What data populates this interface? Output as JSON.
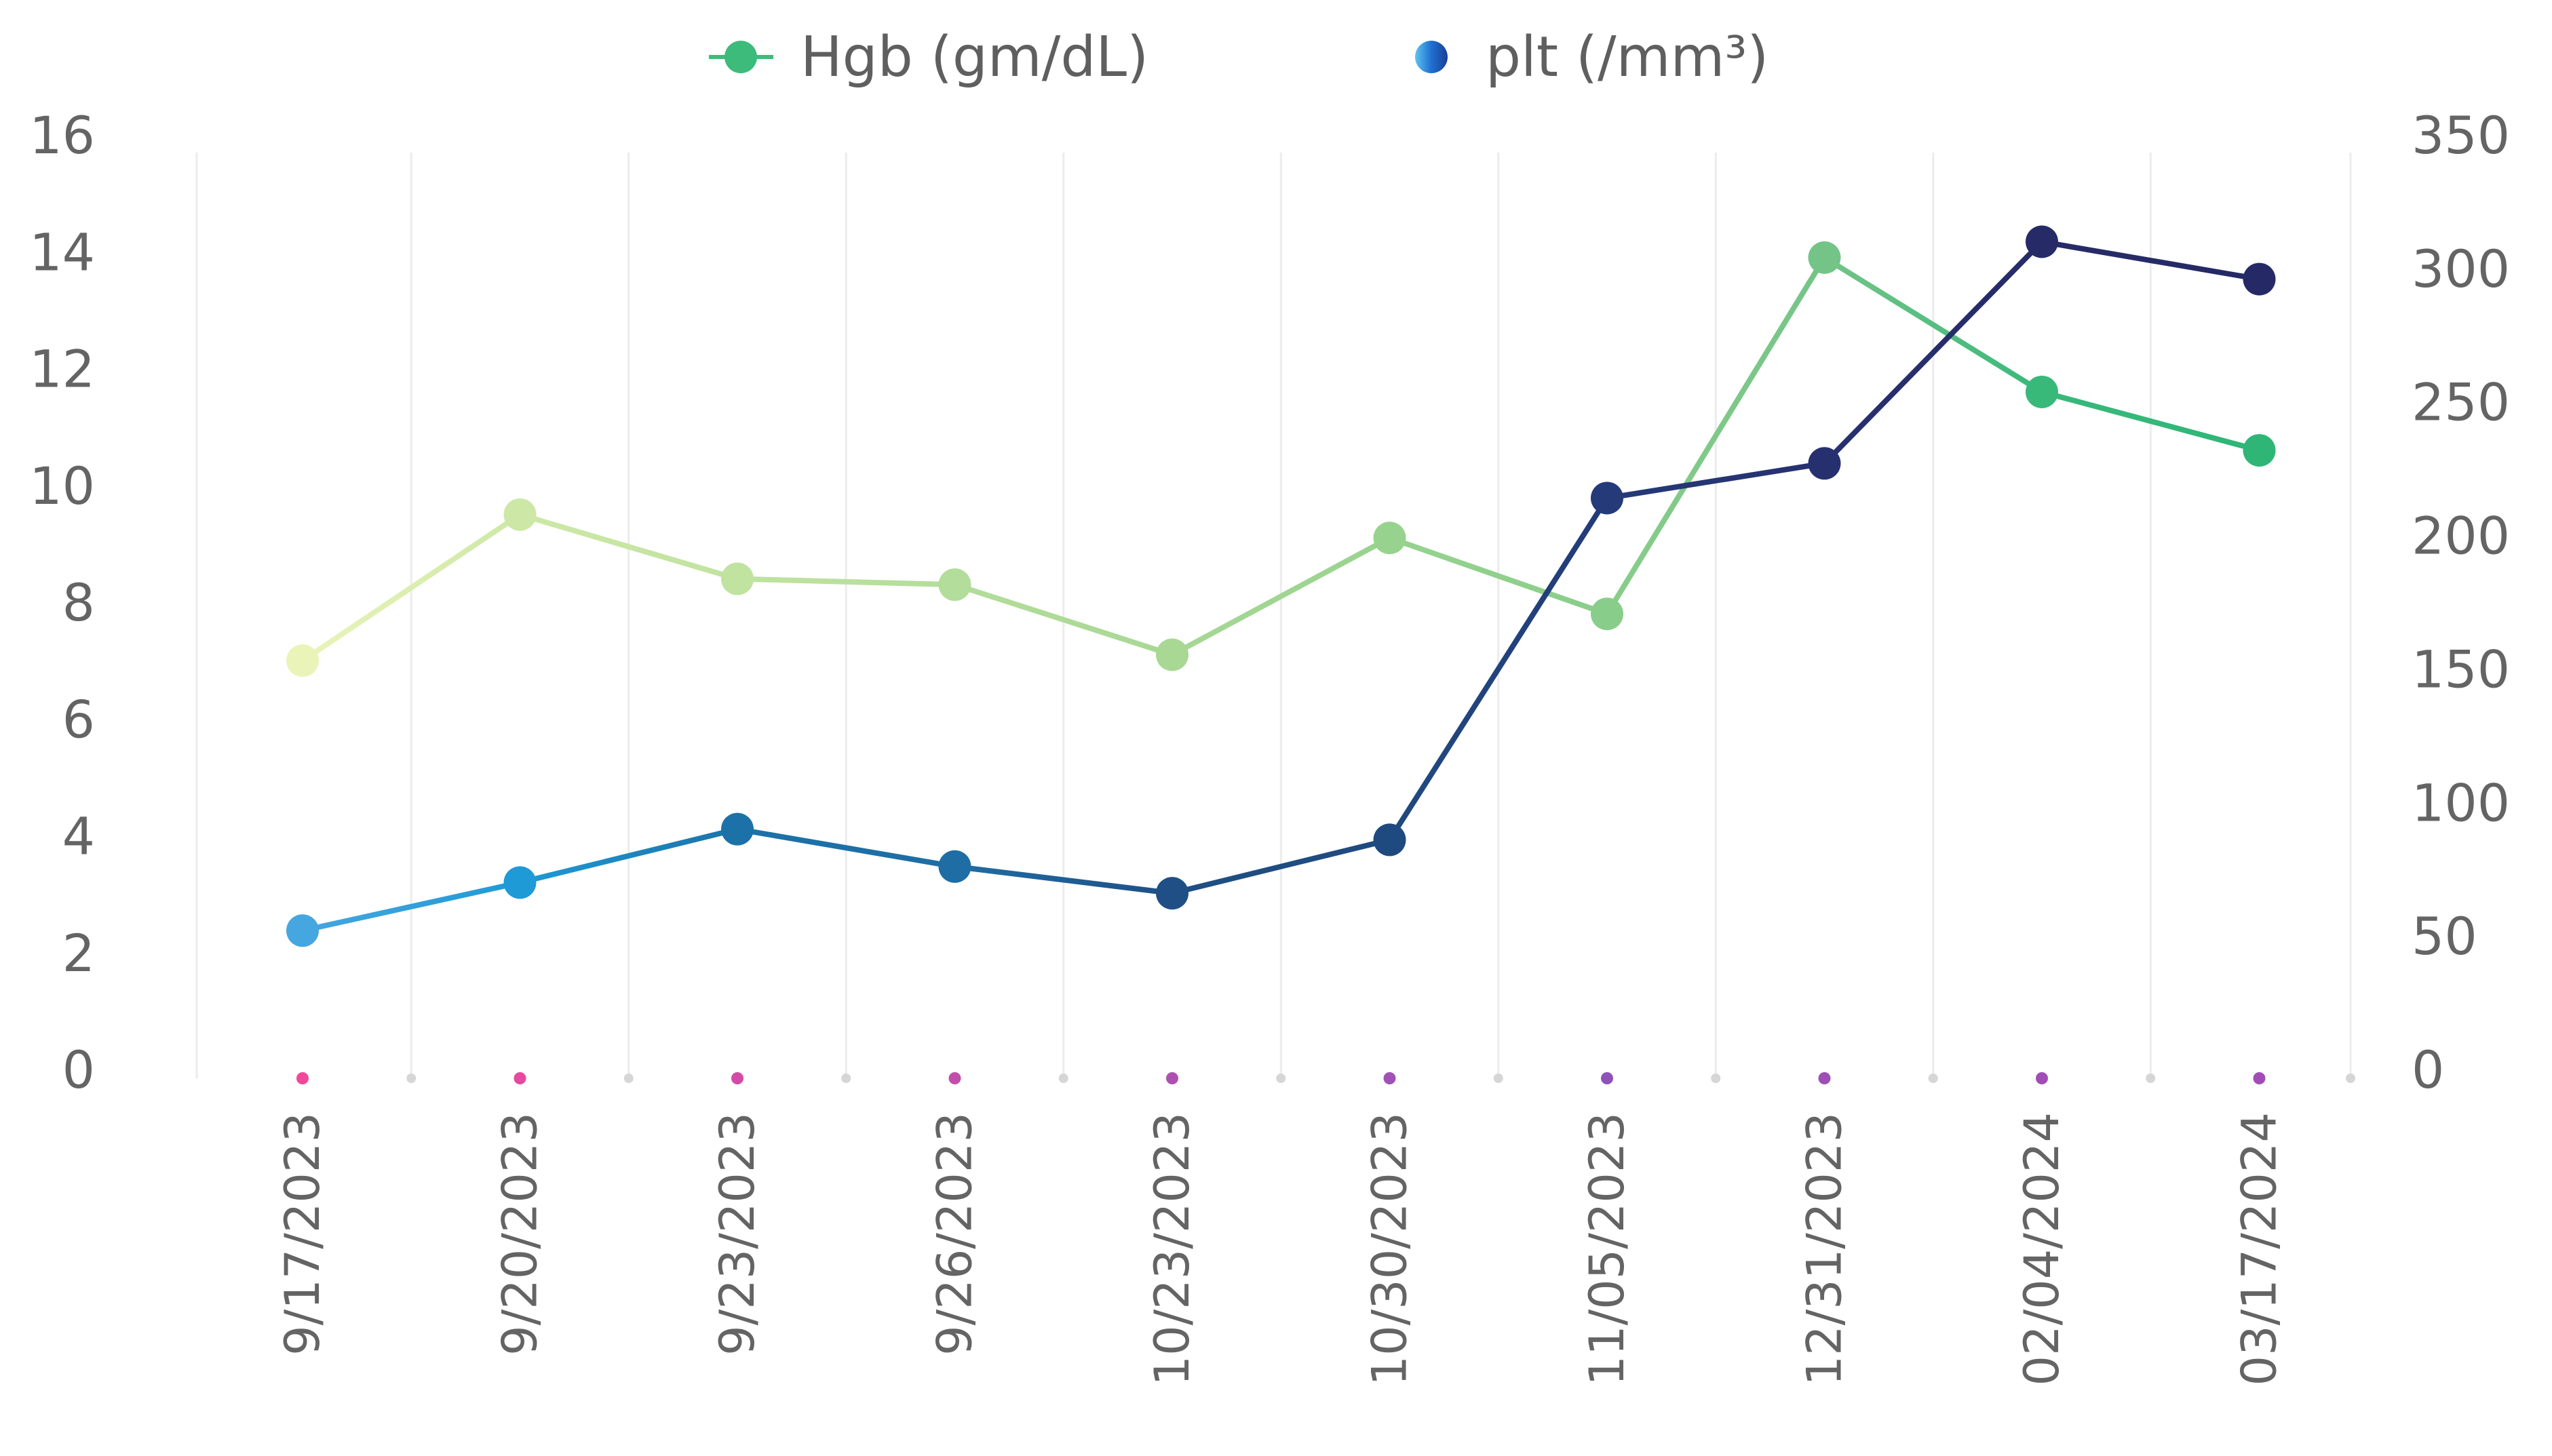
{
  "chart_data": {
    "type": "line",
    "title": "",
    "categories": [
      "9/17/2023",
      "9/20/2023",
      "9/23/2023",
      "9/26/2023",
      "10/23/2023",
      "10/30/2023",
      "11/05/2023",
      "12/31/2023",
      "02/04/2024",
      "03/17/2024"
    ],
    "series": [
      {
        "name": "Hgb (gm/dL)",
        "axis": "left",
        "values": [
          7.0,
          9.5,
          8.4,
          8.3,
          7.1,
          9.1,
          7.8,
          13.9,
          11.6,
          10.6
        ],
        "colors": [
          "#eaf4b8",
          "#cde8a6",
          "#c0e3a0",
          "#b3dd9a",
          "#a8d894",
          "#97d38e",
          "#89cd8a",
          "#74c487",
          "#38b97a",
          "#2fb677"
        ]
      },
      {
        "name": "plt (/mm³)",
        "axis": "right",
        "values": [
          52,
          70,
          90,
          76,
          66,
          86,
          214,
          227,
          310,
          296
        ],
        "colors": [
          "#46a6e0",
          "#1e9ad6",
          "#1c72a8",
          "#1e6da4",
          "#1f4f85",
          "#1f4a7f",
          "#243a79",
          "#27306f",
          "#262b68",
          "#252a66"
        ]
      }
    ],
    "left_axis": {
      "ylim": [
        0,
        16
      ],
      "ticks": [
        "0",
        "2",
        "4",
        "6",
        "8",
        "10",
        "12",
        "14",
        "16"
      ]
    },
    "right_axis": {
      "ylim": [
        0,
        350
      ],
      "ticks": [
        "0",
        "50",
        "100",
        "150",
        "200",
        "250",
        "300",
        "350"
      ]
    },
    "xlabel": "",
    "ylabel_left": "",
    "ylabel_right": "",
    "grid": {
      "vertical": true,
      "horizontal": false
    },
    "legend_position": "top",
    "x_axis_dot_colors": [
      "#f0489a",
      "#e748a0",
      "#d44ba6",
      "#c24eac",
      "#b04fb2",
      "#a150b5",
      "#8e52b9",
      "#9c4fb5",
      "#a24db6",
      "#a24db6"
    ]
  },
  "legend": {
    "items": [
      {
        "label": "Hgb (gm/dL)",
        "icon": "green-circle-line-marker",
        "color": "#3dbb7a"
      },
      {
        "label": "plt (/mm³)",
        "icon": "blue-circle-line-marker",
        "color": "#1e5cb3"
      }
    ]
  }
}
